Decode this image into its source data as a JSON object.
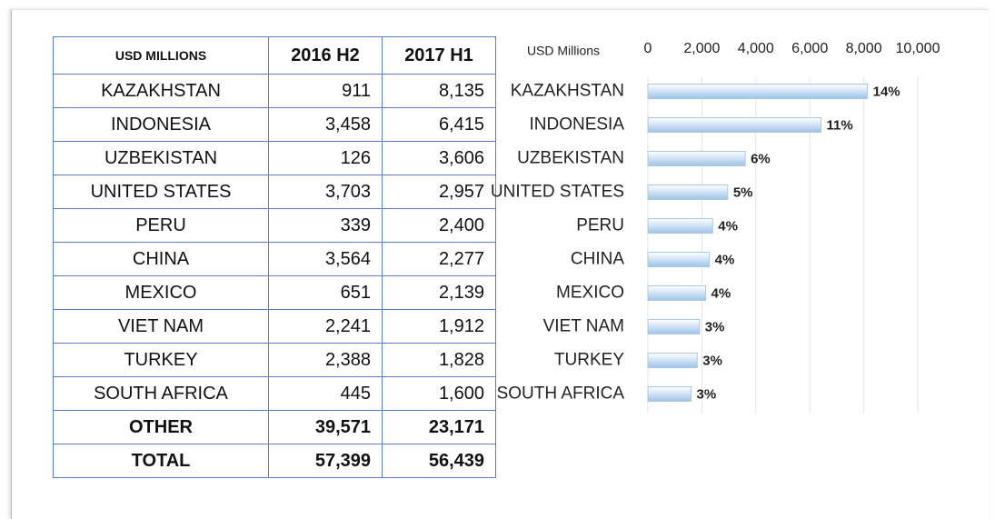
{
  "table": {
    "header": [
      "USD MILLIONS",
      "2016 H2",
      "2017 H1"
    ],
    "rows": [
      [
        "KAZAKHSTAN",
        "911",
        "8,135"
      ],
      [
        "INDONESIA",
        "3,458",
        "6,415"
      ],
      [
        "UZBEKISTAN",
        "126",
        "3,606"
      ],
      [
        "UNITED STATES",
        "3,703",
        "2,957"
      ],
      [
        "PERU",
        "339",
        "2,400"
      ],
      [
        "CHINA",
        "3,564",
        "2,277"
      ],
      [
        "MEXICO",
        "651",
        "2,139"
      ],
      [
        "VIET NAM",
        "2,241",
        "1,912"
      ],
      [
        "TURKEY",
        "2,388",
        "1,828"
      ],
      [
        "SOUTH AFRICA",
        "445",
        "1,600"
      ],
      [
        "OTHER",
        "39,571",
        "23,171"
      ],
      [
        "TOTAL",
        "57,399",
        "56,439"
      ]
    ]
  },
  "chart_data": {
    "type": "bar",
    "orientation": "horizontal",
    "axis_label": "USD Millions",
    "categories": [
      "KAZAKHSTAN",
      "INDONESIA",
      "UZBEKISTAN",
      "UNITED STATES",
      "PERU",
      "CHINA",
      "MEXICO",
      "VIET NAM",
      "TURKEY",
      "SOUTH AFRICA"
    ],
    "values": [
      8135,
      6415,
      3606,
      2957,
      2400,
      2277,
      2139,
      1912,
      1828,
      1600
    ],
    "share_labels": [
      "14%",
      "11%",
      "6%",
      "5%",
      "4%",
      "4%",
      "4%",
      "3%",
      "3%",
      "3%"
    ],
    "color": "#cfe2f5",
    "xlim": [
      0,
      10000
    ],
    "xticks": [
      0,
      {
        "value": 2000,
        "label": "2,000"
      },
      {
        "value": 4000,
        "label": "4,000"
      },
      {
        "value": 6000,
        "label": "6,000"
      },
      {
        "value": 8000,
        "label": "8,000"
      },
      {
        "value": 10000,
        "label": "10,000"
      }
    ],
    "grid": true
  }
}
